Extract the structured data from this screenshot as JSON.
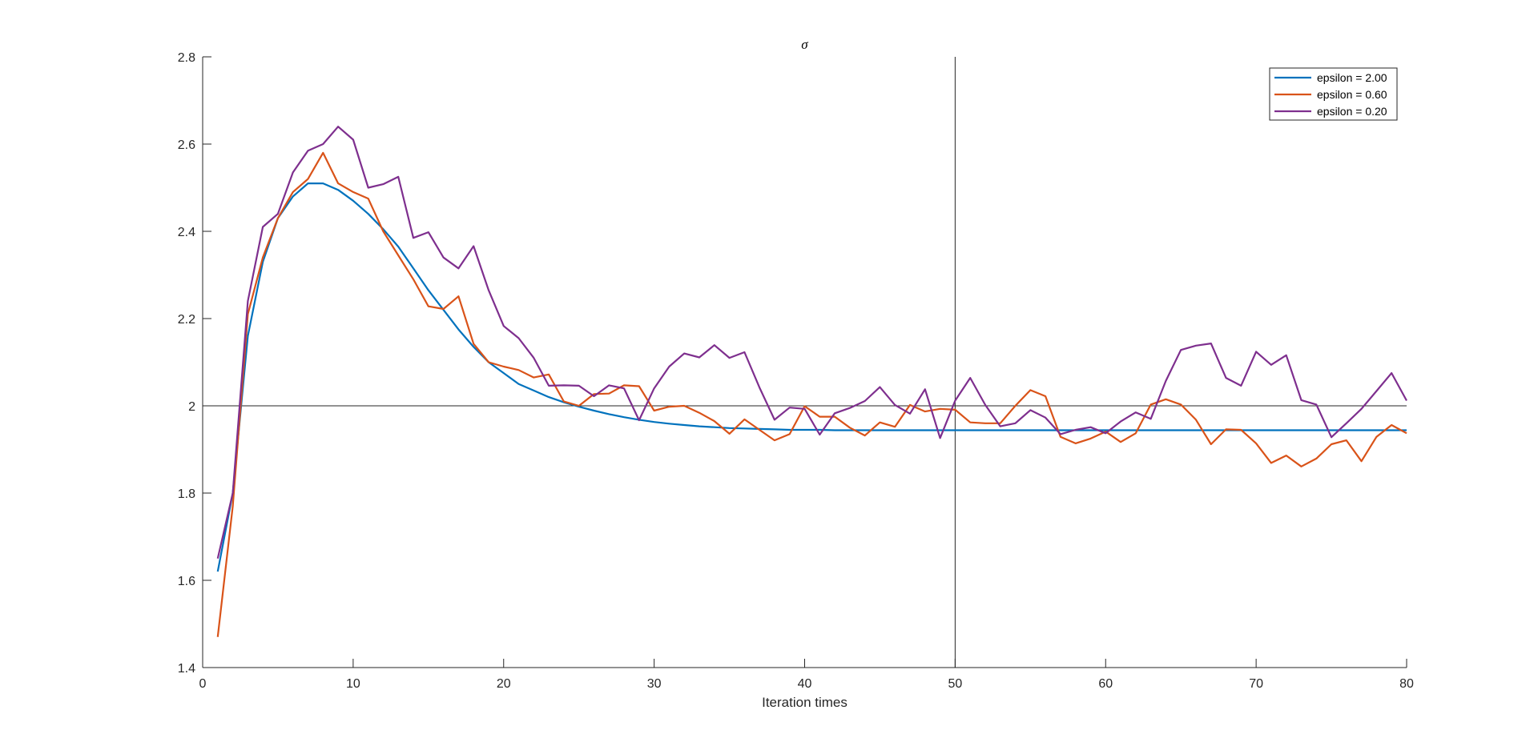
{
  "chart_data": {
    "type": "line",
    "title": "σ",
    "xlabel": "Iteration times",
    "ylabel": "",
    "xlim": [
      0,
      80
    ],
    "ylim": [
      1.4,
      2.8
    ],
    "xticks": [
      0,
      10,
      20,
      30,
      40,
      50,
      60,
      70,
      80
    ],
    "xtick_labels": [
      "0",
      "10",
      "20",
      "30",
      "40",
      "50",
      "60",
      "70",
      "80"
    ],
    "yticks": [
      1.4,
      1.6,
      1.8,
      2.0,
      2.2,
      2.4,
      2.6,
      2.8
    ],
    "ytick_labels": [
      "1.4",
      "1.6",
      "1.8",
      "2",
      "2.2",
      "2.4",
      "2.6",
      "2.8"
    ],
    "grid": false,
    "legend_position": "top-right",
    "reference_lines": [
      {
        "orientation": "horizontal",
        "value": 2.0,
        "color": "#262626"
      },
      {
        "orientation": "vertical",
        "value": 50,
        "color": "#262626"
      }
    ],
    "x": [
      1,
      2,
      3,
      4,
      5,
      6,
      7,
      8,
      9,
      10,
      11,
      12,
      13,
      14,
      15,
      16,
      17,
      18,
      19,
      20,
      21,
      22,
      23,
      24,
      25,
      26,
      27,
      28,
      29,
      30,
      31,
      32,
      33,
      34,
      35,
      36,
      37,
      38,
      39,
      40,
      41,
      42,
      43,
      44,
      45,
      46,
      47,
      48,
      49,
      50,
      51,
      52,
      53,
      54,
      55,
      56,
      57,
      58,
      59,
      60,
      61,
      62,
      63,
      64,
      65,
      66,
      67,
      68,
      69,
      70,
      71,
      72,
      73,
      74,
      75,
      76,
      77,
      78,
      79,
      80
    ],
    "series": [
      {
        "name": "epsilon = 2.00",
        "color": "#0072bd",
        "values": [
          1.62,
          1.8,
          2.16,
          2.33,
          2.43,
          2.48,
          2.51,
          2.51,
          2.495,
          2.47,
          2.44,
          2.405,
          2.365,
          2.315,
          2.265,
          2.22,
          2.175,
          2.135,
          2.1,
          2.075,
          2.05,
          2.035,
          2.02,
          2.008,
          1.998,
          1.989,
          1.981,
          1.974,
          1.968,
          1.963,
          1.959,
          1.956,
          1.953,
          1.951,
          1.949,
          1.948,
          1.947,
          1.946,
          1.945,
          1.945,
          1.945,
          1.944,
          1.944,
          1.944,
          1.944,
          1.944,
          1.944,
          1.944,
          1.944,
          1.944,
          1.944,
          1.944,
          1.944,
          1.944,
          1.944,
          1.944,
          1.944,
          1.944,
          1.944,
          1.944,
          1.944,
          1.944,
          1.944,
          1.944,
          1.944,
          1.944,
          1.944,
          1.944,
          1.944,
          1.944,
          1.944,
          1.944,
          1.944,
          1.944,
          1.944,
          1.944,
          1.944,
          1.944,
          1.944,
          1.944
        ]
      },
      {
        "name": "epsilon = 0.60",
        "color": "#d95319",
        "values": [
          1.47,
          1.77,
          2.21,
          2.34,
          2.43,
          2.49,
          2.52,
          2.58,
          2.51,
          2.49,
          2.475,
          2.4,
          2.345,
          2.29,
          2.228,
          2.222,
          2.251,
          2.142,
          2.1,
          2.09,
          2.082,
          2.065,
          2.072,
          2.01,
          2.0,
          2.027,
          2.028,
          2.047,
          2.045,
          1.989,
          1.998,
          2.0,
          1.984,
          1.965,
          1.936,
          1.969,
          1.945,
          1.921,
          1.935,
          1.999,
          1.975,
          1.975,
          1.95,
          1.932,
          1.962,
          1.952,
          2.002,
          1.987,
          1.993,
          1.991,
          1.962,
          1.96,
          1.96,
          2.0,
          2.036,
          2.022,
          1.929,
          1.914,
          1.925,
          1.941,
          1.917,
          1.937,
          2.003,
          2.015,
          2.003,
          1.968,
          1.912,
          1.946,
          1.945,
          1.914,
          1.869,
          1.886,
          1.861,
          1.879,
          1.912,
          1.921,
          1.873,
          1.929,
          1.956,
          1.937
        ]
      },
      {
        "name": "epsilon = 0.20",
        "color": "#7e2f8e",
        "values": [
          1.65,
          1.8,
          2.24,
          2.41,
          2.44,
          2.535,
          2.585,
          2.6,
          2.64,
          2.61,
          2.5,
          2.508,
          2.525,
          2.385,
          2.398,
          2.34,
          2.315,
          2.366,
          2.265,
          2.183,
          2.155,
          2.11,
          2.046,
          2.047,
          2.046,
          2.022,
          2.047,
          2.04,
          1.967,
          2.04,
          2.09,
          2.12,
          2.111,
          2.139,
          2.11,
          2.123,
          2.042,
          1.968,
          1.996,
          1.993,
          1.934,
          1.983,
          1.995,
          2.011,
          2.043,
          2.002,
          1.982,
          2.038,
          1.926,
          2.012,
          2.064,
          2.002,
          1.953,
          1.96,
          1.99,
          1.973,
          1.935,
          1.945,
          1.951,
          1.937,
          1.964,
          1.985,
          1.97,
          2.057,
          2.128,
          2.138,
          2.143,
          2.064,
          2.046,
          2.124,
          2.094,
          2.116,
          2.013,
          2.003,
          1.928,
          1.96,
          1.993,
          2.034,
          2.075,
          2.012
        ]
      }
    ]
  }
}
